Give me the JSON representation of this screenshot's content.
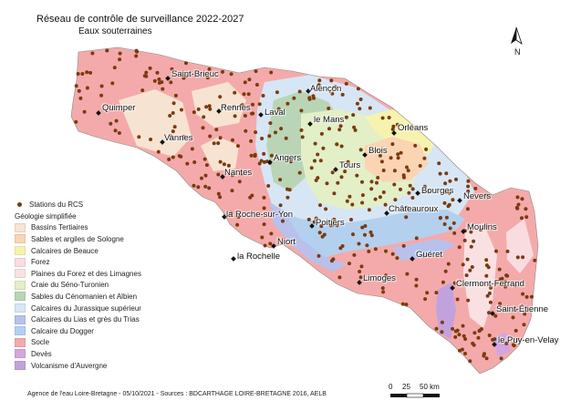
{
  "title": "Réseau de contrôle de surveillance 2022-2027",
  "subtitle": "Eaux souterraines",
  "north_label": "N",
  "source": "Agence de l'eau Loire-Bretagne - 05/10/2021 - Sources : BDCARTHAGE LOIRE-BRETAGNE 2016, AELB",
  "scale": {
    "labels": [
      "0",
      "25",
      "50 km"
    ]
  },
  "legend": {
    "stations_label": "Stations du RCS",
    "station_color": "#7a3b10",
    "geology_heading": "Géologie simplifiée",
    "items": [
      {
        "label": "Bassins Tertiaires",
        "color": "#f7e3d2"
      },
      {
        "label": "Sables et argiles de Sologne",
        "color": "#fbd4b4"
      },
      {
        "label": "Calcaires de Beauce",
        "color": "#f7f3ae"
      },
      {
        "label": "Forez",
        "color": "#f8dce0"
      },
      {
        "label": "Plaines du Forez et des Limagnes",
        "color": "#f9e1e3"
      },
      {
        "label": "Craie du Séno-Turonien",
        "color": "#e2efc7"
      },
      {
        "label": "Sables du Cénomanien et Albien",
        "color": "#b9d5b5"
      },
      {
        "label": "Calcaires du Jurassique supérieur",
        "color": "#d7e6f5"
      },
      {
        "label": "Calcaires du Lias et grès du Trias",
        "color": "#b8c1ec"
      },
      {
        "label": "Calcaire du Dogger",
        "color": "#b3d0ef"
      },
      {
        "label": "Socle",
        "color": "#f4aaaa"
      },
      {
        "label": "Devès",
        "color": "#d4a5e0"
      },
      {
        "label": "Volcanisme d'Auvergne",
        "color": "#c2a2dd"
      }
    ]
  },
  "cities": [
    "Saint-Brieuc",
    "Alençon",
    "Quimper",
    "Rennes",
    "Laval",
    "le Mans",
    "Orléans",
    "Vannes",
    "Blois",
    "Angers",
    "Tours",
    "Nantes",
    "Bourges",
    "Nevers",
    "la Roche-sur-Yon",
    "Poitiers",
    "Châteauroux",
    "Moulins",
    "Niort",
    "Guéret",
    "la Rochelle",
    "Limoges",
    "Clermont-Ferrand",
    "Saint-Étienne",
    "le Puy-en-Velay"
  ]
}
